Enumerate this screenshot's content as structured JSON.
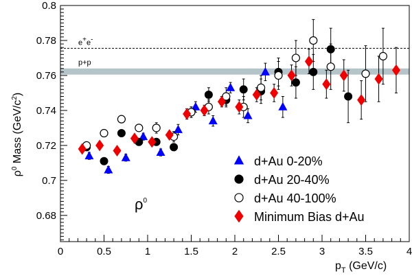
{
  "chart_data": {
    "type": "scatter",
    "title": "",
    "xlabel": {
      "main": "p",
      "sub": "T",
      "rest": " (GeV/c)"
    },
    "ylabel": {
      "rho": "ρ",
      "sup0": "0",
      "mid": " Mass (GeV/c",
      "sup2": "2",
      "end": ")"
    },
    "xlim": [
      0,
      4
    ],
    "ylim": [
      0.665,
      0.8
    ],
    "x_ticks": [
      "0",
      "0.5",
      "1",
      "1.5",
      "2",
      "2.5",
      "3",
      "3.5",
      "4"
    ],
    "x_tick_values": [
      0,
      0.5,
      1,
      1.5,
      2,
      2.5,
      3,
      3.5,
      4
    ],
    "y_ticks": [
      "0.68",
      "0.7",
      "0.72",
      "0.74",
      "0.76",
      "0.78",
      "0.8"
    ],
    "y_tick_values": [
      0.68,
      0.7,
      0.72,
      0.74,
      0.76,
      0.78,
      0.8
    ],
    "reference_lines": [
      {
        "label_main": "e",
        "label_sup1": "+",
        "label_mid": "e",
        "label_sup2": "-",
        "y": 0.7755,
        "style": "dashed"
      },
      {
        "label": "p+p",
        "y_low": 0.7605,
        "y_high": 0.764,
        "style": "band",
        "color": "#b4c4c9"
      }
    ],
    "annotation": {
      "main": "ρ",
      "sup": "0"
    },
    "legend_position": "bottom-right",
    "series": [
      {
        "name": "d+Au 0-20%",
        "marker": "triangle",
        "color": "#0000ff",
        "points": [
          {
            "x": 0.33,
            "y": 0.714,
            "err": 0.002
          },
          {
            "x": 0.55,
            "y": 0.706,
            "err": 0.002
          },
          {
            "x": 0.75,
            "y": 0.713,
            "err": 0.002
          },
          {
            "x": 0.95,
            "y": 0.725,
            "err": 0.002
          },
          {
            "x": 1.15,
            "y": 0.716,
            "err": 0.002
          },
          {
            "x": 1.35,
            "y": 0.729,
            "err": 0.003
          },
          {
            "x": 1.55,
            "y": 0.742,
            "err": 0.003
          },
          {
            "x": 1.75,
            "y": 0.734,
            "err": 0.003
          },
          {
            "x": 1.95,
            "y": 0.753,
            "err": 0.003
          },
          {
            "x": 2.15,
            "y": 0.737,
            "err": 0.004
          },
          {
            "x": 2.35,
            "y": 0.762,
            "err": 0.005
          },
          {
            "x": 2.55,
            "y": 0.742,
            "err": 0.006
          }
        ]
      },
      {
        "name": "d+Au 20-40%",
        "marker": "circle-filled",
        "color": "#000000",
        "points": [
          {
            "x": 0.3,
            "y": 0.719,
            "err": 0.002
          },
          {
            "x": 0.5,
            "y": 0.711,
            "err": 0.002
          },
          {
            "x": 0.7,
            "y": 0.727,
            "err": 0.002
          },
          {
            "x": 0.9,
            "y": 0.722,
            "err": 0.002
          },
          {
            "x": 1.1,
            "y": 0.722,
            "err": 0.002
          },
          {
            "x": 1.3,
            "y": 0.719,
            "err": 0.002
          },
          {
            "x": 1.5,
            "y": 0.739,
            "err": 0.003
          },
          {
            "x": 1.7,
            "y": 0.749,
            "err": 0.004
          },
          {
            "x": 1.9,
            "y": 0.746,
            "err": 0.004
          },
          {
            "x": 2.1,
            "y": 0.752,
            "err": 0.006
          },
          {
            "x": 2.3,
            "y": 0.751,
            "err": 0.007
          },
          {
            "x": 2.5,
            "y": 0.762,
            "err": 0.008
          },
          {
            "x": 2.7,
            "y": 0.756,
            "err": 0.009
          },
          {
            "x": 2.9,
            "y": 0.762,
            "err": 0.01
          },
          {
            "x": 3.1,
            "y": 0.775,
            "err": 0.012
          },
          {
            "x": 3.3,
            "y": 0.748,
            "err": 0.015
          }
        ]
      },
      {
        "name": "d+Au 40-100%",
        "marker": "circle-open",
        "color": "#000000",
        "points": [
          {
            "x": 0.3,
            "y": 0.72,
            "err": 0.002
          },
          {
            "x": 0.5,
            "y": 0.727,
            "err": 0.002
          },
          {
            "x": 0.7,
            "y": 0.735,
            "err": 0.002
          },
          {
            "x": 0.9,
            "y": 0.73,
            "err": 0.002
          },
          {
            "x": 1.1,
            "y": 0.73,
            "err": 0.003
          },
          {
            "x": 1.3,
            "y": 0.725,
            "err": 0.003
          },
          {
            "x": 1.5,
            "y": 0.739,
            "err": 0.003
          },
          {
            "x": 1.7,
            "y": 0.742,
            "err": 0.004
          },
          {
            "x": 1.9,
            "y": 0.748,
            "err": 0.005
          },
          {
            "x": 2.1,
            "y": 0.742,
            "err": 0.006
          },
          {
            "x": 2.3,
            "y": 0.753,
            "err": 0.007
          },
          {
            "x": 2.5,
            "y": 0.76,
            "err": 0.008
          },
          {
            "x": 2.7,
            "y": 0.77,
            "err": 0.01
          },
          {
            "x": 2.9,
            "y": 0.78,
            "err": 0.012
          },
          {
            "x": 3.1,
            "y": 0.765,
            "err": 0.013
          },
          {
            "x": 3.5,
            "y": 0.761,
            "err": 0.016
          },
          {
            "x": 3.7,
            "y": 0.771,
            "err": 0.016
          }
        ]
      },
      {
        "name": "Minimum Bias d+Au",
        "marker": "diamond",
        "color": "#ee0000",
        "points": [
          {
            "x": 0.25,
            "y": 0.718,
            "err": 0.002
          },
          {
            "x": 0.45,
            "y": 0.72,
            "err": 0.002
          },
          {
            "x": 0.65,
            "y": 0.717,
            "err": 0.002
          },
          {
            "x": 0.85,
            "y": 0.724,
            "err": 0.002
          },
          {
            "x": 1.05,
            "y": 0.722,
            "err": 0.002
          },
          {
            "x": 1.25,
            "y": 0.726,
            "err": 0.002
          },
          {
            "x": 1.45,
            "y": 0.738,
            "err": 0.003
          },
          {
            "x": 1.65,
            "y": 0.74,
            "err": 0.003
          },
          {
            "x": 1.85,
            "y": 0.745,
            "err": 0.003
          },
          {
            "x": 2.05,
            "y": 0.742,
            "err": 0.004
          },
          {
            "x": 2.25,
            "y": 0.749,
            "err": 0.004
          },
          {
            "x": 2.45,
            "y": 0.75,
            "err": 0.005
          },
          {
            "x": 2.65,
            "y": 0.76,
            "err": 0.006
          },
          {
            "x": 2.85,
            "y": 0.768,
            "err": 0.007
          },
          {
            "x": 3.05,
            "y": 0.755,
            "err": 0.008
          },
          {
            "x": 3.25,
            "y": 0.76,
            "err": 0.009
          },
          {
            "x": 3.45,
            "y": 0.746,
            "err": 0.011
          },
          {
            "x": 3.65,
            "y": 0.758,
            "err": 0.013
          },
          {
            "x": 3.85,
            "y": 0.763,
            "err": 0.013
          }
        ]
      }
    ]
  }
}
